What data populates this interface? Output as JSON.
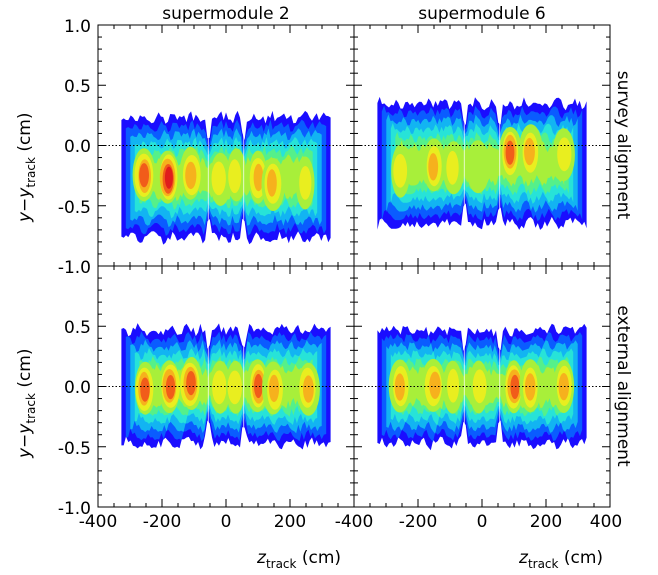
{
  "chart_data": {
    "type": "heatmap",
    "column_titles": [
      "supermodule 2",
      "supermodule 6"
    ],
    "row_titles": [
      "survey alignment",
      "external alignment"
    ],
    "xlabel": {
      "main": "z",
      "sub": "track",
      "unit": " (cm)"
    },
    "ylabel": {
      "main": "y−y",
      "sub": "track",
      "unit": " (cm)"
    },
    "xlim": [
      -400,
      400
    ],
    "ylim": [
      -1.0,
      1.0
    ],
    "x_ticks": [
      -400,
      -200,
      0,
      200,
      400
    ],
    "x_tick_labels_left": [
      "-400",
      "-200",
      "0",
      "200",
      "-400"
    ],
    "x_tick_labels_right": [
      "-200",
      "0",
      "200",
      "400"
    ],
    "y_tick_labels_top": [
      "1.0",
      "0.5",
      "0.0",
      "-0.5",
      "-1.0"
    ],
    "y_tick_labels_bottom": [
      "0.5",
      "0.0",
      "-0.5",
      "-1.0"
    ],
    "y_ticks": [
      1.0,
      0.5,
      0.0,
      -0.5,
      -1.0
    ],
    "reference_line_y": 0.0,
    "palette": [
      "#1a0dff",
      "#0a5cff",
      "#12b4f2",
      "#27e3d8",
      "#55f08a",
      "#a8ef3a",
      "#e9ee1f",
      "#f6b11d",
      "#f15c1a",
      "#e01c1c"
    ],
    "panels": [
      {
        "name": "supermodule 2, survey alignment",
        "center_y": -0.27,
        "half_width": 0.5,
        "z_range": [
          -335,
          335
        ],
        "stack_edges": [
          -55,
          55
        ],
        "hotspots": [
          {
            "z": -255,
            "y": -0.25,
            "level": 8.6
          },
          {
            "z": -180,
            "y": -0.27,
            "level": 9.0
          },
          {
            "z": -110,
            "y": -0.24,
            "level": 7.6
          },
          {
            "z": -20,
            "y": -0.28,
            "level": 6.6
          },
          {
            "z": 30,
            "y": -0.25,
            "level": 6.0
          },
          {
            "z": 100,
            "y": -0.27,
            "level": 7.6
          },
          {
            "z": 145,
            "y": -0.32,
            "level": 7.2
          },
          {
            "z": 245,
            "y": -0.32,
            "level": 6.6
          }
        ]
      },
      {
        "name": "supermodule 6, survey alignment",
        "center_y": -0.15,
        "half_width": 0.5,
        "z_range": [
          -335,
          335
        ],
        "stack_edges": [
          -55,
          55
        ],
        "hotspots": [
          {
            "z": -255,
            "y": -0.22,
            "level": 6.6
          },
          {
            "z": -150,
            "y": -0.17,
            "level": 7.6
          },
          {
            "z": -90,
            "y": -0.18,
            "level": 6.6
          },
          {
            "z": -10,
            "y": -0.18,
            "level": 5.6
          },
          {
            "z": 90,
            "y": -0.06,
            "level": 8.0
          },
          {
            "z": 150,
            "y": -0.05,
            "level": 7.6
          },
          {
            "z": 255,
            "y": -0.07,
            "level": 6.8
          }
        ]
      },
      {
        "name": "supermodule 2, external alignment",
        "center_y": 0.0,
        "half_width": 0.47,
        "z_range": [
          -335,
          335
        ],
        "stack_edges": [
          -55,
          55
        ],
        "hotspots": [
          {
            "z": -255,
            "y": -0.02,
            "level": 8.4
          },
          {
            "z": -175,
            "y": 0.0,
            "level": 8.8
          },
          {
            "z": -110,
            "y": 0.02,
            "level": 8.6
          },
          {
            "z": -20,
            "y": 0.0,
            "level": 6.8
          },
          {
            "z": 30,
            "y": 0.0,
            "level": 6.2
          },
          {
            "z": 100,
            "y": 0.0,
            "level": 8.6
          },
          {
            "z": 150,
            "y": -0.02,
            "level": 7.6
          },
          {
            "z": 255,
            "y": -0.02,
            "level": 7.0
          }
        ]
      },
      {
        "name": "supermodule 6, external alignment",
        "center_y": 0.0,
        "half_width": 0.47,
        "z_range": [
          -335,
          335
        ],
        "stack_edges": [
          -55,
          55
        ],
        "hotspots": [
          {
            "z": -255,
            "y": 0.0,
            "level": 7.2
          },
          {
            "z": -150,
            "y": 0.0,
            "level": 7.8
          },
          {
            "z": -90,
            "y": 0.0,
            "level": 6.8
          },
          {
            "z": -10,
            "y": 0.0,
            "level": 6.0
          },
          {
            "z": 100,
            "y": 0.0,
            "level": 8.6
          },
          {
            "z": 150,
            "y": 0.0,
            "level": 7.8
          },
          {
            "z": 255,
            "y": 0.0,
            "level": 7.0
          }
        ]
      }
    ]
  }
}
